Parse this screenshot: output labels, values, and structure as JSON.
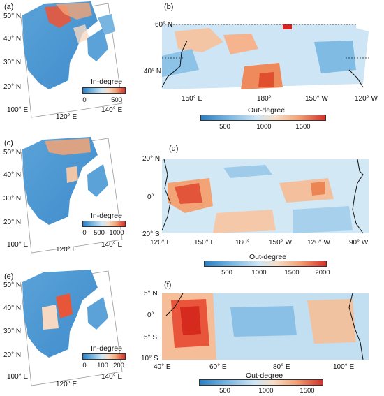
{
  "panels": {
    "a": {
      "letter": "(a)",
      "lat": [
        "50° N",
        "40° N",
        "30° N",
        "20° N"
      ],
      "lon": [
        "100° E",
        "120° E",
        "140° E"
      ],
      "cb_title": "In-degree",
      "cb_ticks": [
        "0",
        "500"
      ]
    },
    "b": {
      "letter": "(b)",
      "lat": [
        "60° N",
        "40° N"
      ],
      "lon": [
        "150° E",
        "180°",
        "150° W",
        "120° W"
      ],
      "cb_title": "Out-degree",
      "cb_ticks": [
        "500",
        "1000",
        "1500"
      ]
    },
    "c": {
      "letter": "(c)",
      "lat": [
        "50° N",
        "40° N",
        "30° N",
        "20° N"
      ],
      "lon": [
        "100° E",
        "120° E",
        "140° E"
      ],
      "cb_title": "In-degree",
      "cb_ticks": [
        "0",
        "500",
        "1000"
      ]
    },
    "d": {
      "letter": "(d)",
      "lat": [
        "20° N",
        "0°",
        "20° S"
      ],
      "lon": [
        "120° E",
        "150° E",
        "180°",
        "150° W",
        "120° W",
        "90° W"
      ],
      "cb_title": "Out-degree",
      "cb_ticks": [
        "500",
        "1000",
        "1500",
        "2000"
      ]
    },
    "e": {
      "letter": "(e)",
      "lat": [
        "50° N",
        "40° N",
        "30° N",
        "20° N"
      ],
      "lon": [
        "100° E",
        "120° E",
        "140° E"
      ],
      "cb_title": "In-degree",
      "cb_ticks": [
        "0",
        "100",
        "200"
      ]
    },
    "f": {
      "letter": "(f)",
      "lat": [
        "5° N",
        "0°",
        "5° S",
        "10° S"
      ],
      "lon": [
        "40° E",
        "60° E",
        "80° E",
        "100° E"
      ],
      "cb_title": "Out-degree",
      "cb_ticks": [
        "500",
        "1000",
        "1500"
      ]
    }
  },
  "colors": {
    "low": "#2b7ec2",
    "mid": "#f2f2f2",
    "high": "#d73027"
  }
}
